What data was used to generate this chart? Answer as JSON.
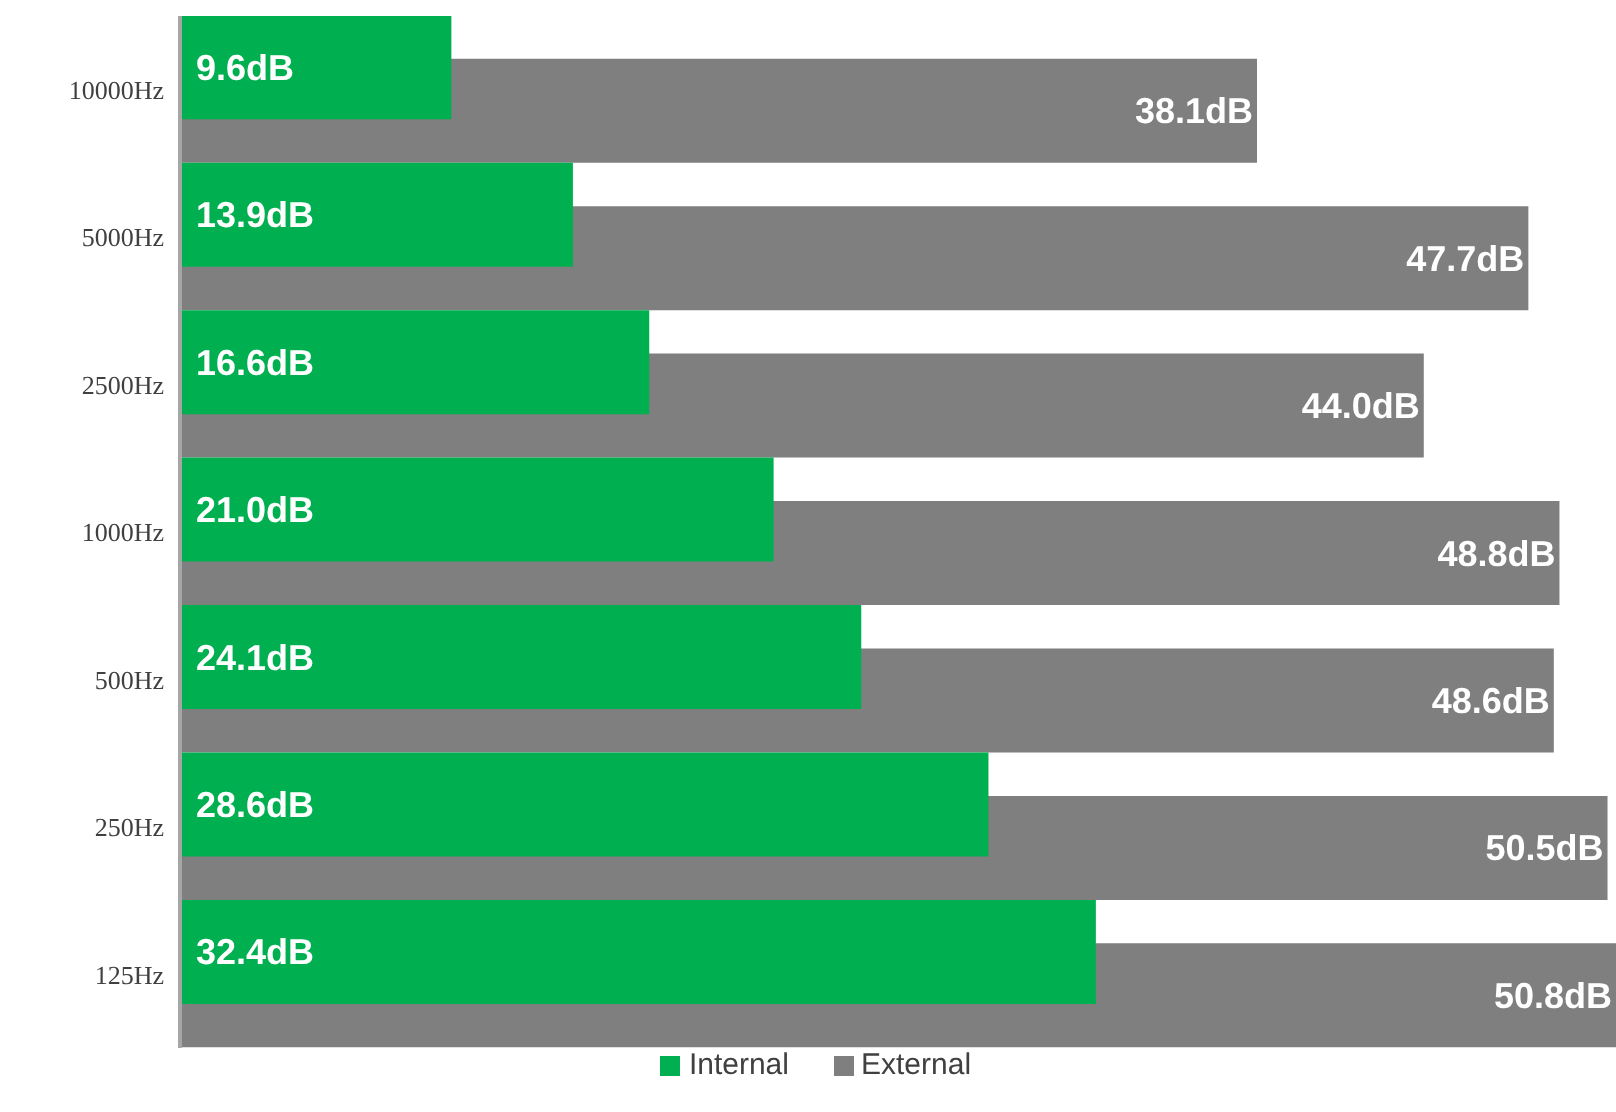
{
  "chart_data": {
    "type": "bar",
    "orientation": "horizontal",
    "categories": [
      "10000Hz",
      "5000Hz",
      "2500Hz",
      "1000Hz",
      "500Hz",
      "250Hz",
      "125Hz"
    ],
    "series": [
      {
        "name": "Internal",
        "color": "#00b050",
        "values": [
          9.6,
          13.9,
          16.6,
          21.0,
          24.1,
          28.6,
          32.4
        ],
        "value_labels": [
          "9.6dB",
          "13.9dB",
          "16.6dB",
          "21.0dB",
          "24.1dB",
          "28.6dB",
          "32.4dB"
        ]
      },
      {
        "name": "External",
        "color": "#7f7f7f",
        "values": [
          38.1,
          47.7,
          44.0,
          48.8,
          48.6,
          50.5,
          50.8
        ],
        "value_labels": [
          "38.1dB",
          "47.7dB",
          "44.0dB",
          "48.8dB",
          "48.6dB",
          "50.5dB",
          "50.8dB"
        ]
      }
    ],
    "legend": "bottom",
    "grid": false,
    "tick_labels": "y"
  }
}
